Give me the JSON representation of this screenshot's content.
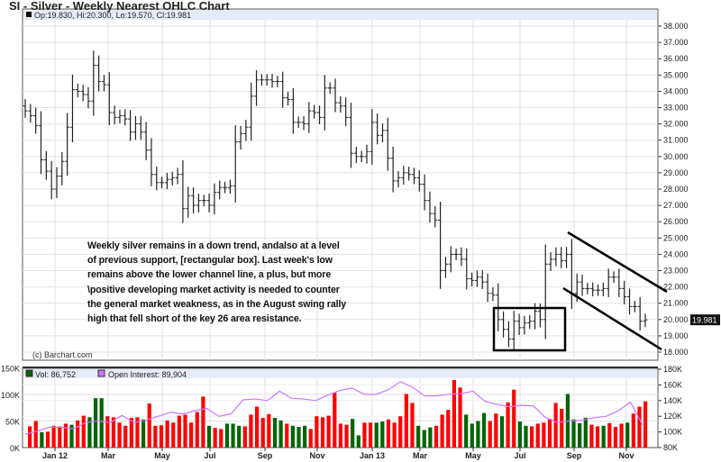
{
  "chart_data": {
    "type": "ohlc",
    "title": "SI - Silver - Weekly Nearest OHLC Chart",
    "ohlc_readout": "Op:19.830, Hi:20.300, Lo:19.570, Cl:19.981",
    "last_price_label": "19.981",
    "copyright": "(c) Barchart.com",
    "price_axis": {
      "ylim": [
        18,
        38
      ],
      "ticks": [
        "18.000",
        "19.000",
        "20.000",
        "21.000",
        "22.000",
        "23.000",
        "24.000",
        "25.000",
        "26.000",
        "27.000",
        "28.000",
        "29.000",
        "30.000",
        "31.000",
        "32.000",
        "33.000",
        "34.000",
        "35.000",
        "36.000",
        "37.000",
        "38.000"
      ]
    },
    "x_ticks": [
      "Jan 12",
      "Mar",
      "May",
      "Jul",
      "Sep",
      "Nov",
      "Jan 13",
      "Mar",
      "May",
      "Jul",
      "Sep",
      "Nov"
    ],
    "close": [
      32.8,
      32.5,
      31.9,
      29.8,
      29.1,
      28.0,
      28.8,
      29.7,
      31.8,
      34.1,
      34.0,
      33.8,
      33.4,
      35.6,
      34.6,
      34.4,
      32.7,
      32.4,
      32.5,
      32.3,
      31.5,
      32.0,
      31.5,
      30.4,
      28.9,
      28.4,
      28.4,
      28.6,
      28.7,
      28.9,
      26.8,
      27.6,
      27.0,
      27.3,
      27.3,
      27.0,
      27.8,
      28.1,
      28.1,
      28.2,
      30.9,
      31.4,
      31.8,
      33.7,
      34.7,
      34.7,
      34.7,
      34.6,
      34.6,
      33.6,
      33.5,
      32.1,
      32.1,
      32.0,
      32.8,
      32.7,
      32.4,
      34.2,
      34.2,
      33.3,
      33.1,
      32.4,
      30.2,
      30.0,
      30.0,
      30.3,
      32.1,
      31.3,
      31.6,
      29.9,
      28.5,
      28.7,
      29.0,
      28.9,
      28.7,
      28.3,
      27.3,
      26.5,
      26.1,
      23.0,
      23.4,
      24.0,
      24.0,
      23.7,
      22.5,
      22.4,
      22.6,
      22.3,
      21.6,
      21.5,
      20.0,
      19.4,
      18.8,
      19.9,
      19.5,
      19.8,
      19.9,
      20.5,
      20.0,
      23.4,
      23.7,
      24.0,
      23.6,
      24.0,
      21.6,
      22.3,
      21.9,
      21.9,
      21.8,
      21.8,
      21.9,
      22.6,
      22.6,
      21.9,
      21.4,
      20.8,
      20.8,
      19.9,
      19.981
    ],
    "annotation": {
      "lines": [
        "Weekly silver remains in a down trend, andalso at a level",
        "of previous support, [rectangular box].  Last week's low",
        "remains above the lower channel line, a plus, but more",
        "\\positive developing market activity is needed to counter",
        "the general market weakness, as in the August swing rally",
        "high that fell short of the key 26 area resistance."
      ]
    },
    "volume": {
      "legend_vol": "Vol: 86,752",
      "legend_oi": "Open Interest: 89,904",
      "left_ticks": [
        "0K",
        "50K",
        "100K",
        "150K"
      ],
      "right_ticks": [
        "80K",
        "100K",
        "120K",
        "140K",
        "160K",
        "180K"
      ],
      "values_k": [
        40,
        50,
        29,
        30,
        41,
        40,
        45,
        43,
        51,
        60,
        57,
        93,
        93,
        59,
        57,
        47,
        41,
        56,
        57,
        53,
        83,
        41,
        42,
        51,
        47,
        60,
        62,
        47,
        67,
        96,
        41,
        37,
        35,
        45,
        45,
        41,
        40,
        62,
        77,
        56,
        63,
        56,
        51,
        45,
        41,
        39,
        41,
        35,
        59,
        57,
        60,
        103,
        45,
        43,
        54,
        23,
        47,
        47,
        47,
        49,
        53,
        47,
        59,
        101,
        84,
        41,
        33,
        38,
        41,
        62,
        71,
        127,
        113,
        62,
        45,
        50,
        65,
        50,
        64,
        59,
        85,
        109,
        49,
        41,
        40,
        45,
        47,
        54,
        84,
        73,
        101,
        53,
        46,
        56,
        43,
        40,
        41,
        46,
        39,
        45,
        47,
        64,
        77,
        87
      ],
      "direction": "dduddddudduuudddddduddddddddddudduuuddddduuduuuddddddduudduuddddduuuddddduuuuddudduudddddduuuudduddduddduddddu",
      "open_interest_k": [
        97,
        101,
        106,
        106,
        104,
        112,
        114,
        112,
        121,
        112,
        115,
        120,
        125,
        123,
        127,
        130,
        120,
        123,
        141,
        142,
        140,
        152,
        143,
        142,
        140,
        147,
        153,
        156,
        148,
        148,
        154,
        164,
        157,
        146,
        146,
        148,
        149,
        152,
        139,
        135,
        132,
        134,
        133,
        118,
        112,
        114,
        115,
        118,
        120,
        127,
        138,
        109
      ],
      "colors": {
        "up": "#006400",
        "down": "#ff0000",
        "oi": "#cc77ff"
      }
    }
  }
}
